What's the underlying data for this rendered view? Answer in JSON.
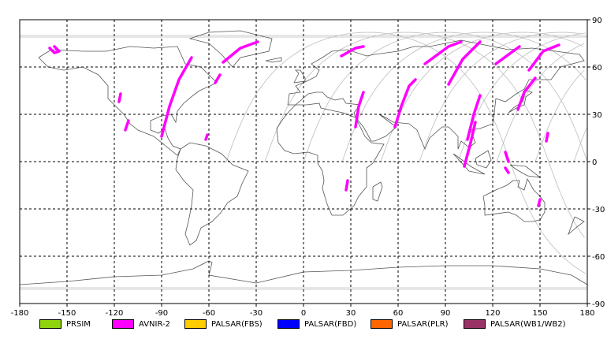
{
  "map": {
    "x_ticks": [
      "-180",
      "-150",
      "-120",
      "-90",
      "-60",
      "-30",
      "0",
      "30",
      "60",
      "90",
      "120",
      "150",
      "180"
    ],
    "y_ticks": [
      "90",
      "60",
      "30",
      "0",
      "-30",
      "-60",
      "-90"
    ],
    "x_range": [
      -180,
      180
    ],
    "y_range": [
      -90,
      90
    ],
    "grid": "dashed",
    "frame_color": "#000000",
    "orbit_color": "#bdbdbd",
    "coast_color": "#555555",
    "scenes": [
      {
        "sensor": "AVNIR-2",
        "path": [
          [
            -158,
            73
          ],
          [
            -155,
            70
          ],
          [
            -158,
            69
          ],
          [
            -161,
            72
          ]
        ]
      },
      {
        "sensor": "AVNIR-2",
        "path": [
          [
            -117,
            38
          ],
          [
            -116,
            43
          ]
        ]
      },
      {
        "sensor": "AVNIR-2",
        "path": [
          [
            -113,
            20
          ],
          [
            -111,
            26
          ]
        ]
      },
      {
        "sensor": "AVNIR-2",
        "path": [
          [
            -90,
            16
          ],
          [
            -85,
            35
          ],
          [
            -79,
            52
          ],
          [
            -71,
            66
          ]
        ]
      },
      {
        "sensor": "AVNIR-2",
        "path": [
          [
            -62,
            14
          ],
          [
            -61,
            17
          ]
        ]
      },
      {
        "sensor": "AVNIR-2",
        "path": [
          [
            -56,
            50
          ],
          [
            -53,
            55
          ]
        ]
      },
      {
        "sensor": "AVNIR-2",
        "path": [
          [
            -51,
            63
          ],
          [
            -40,
            72
          ],
          [
            -29,
            76
          ]
        ]
      },
      {
        "sensor": "AVNIR-2",
        "path": [
          [
            24,
            67
          ],
          [
            33,
            72
          ],
          [
            38,
            73
          ]
        ]
      },
      {
        "sensor": "AVNIR-2",
        "path": [
          [
            33,
            22
          ],
          [
            35,
            35
          ],
          [
            38,
            44
          ]
        ]
      },
      {
        "sensor": "AVNIR-2",
        "path": [
          [
            28,
            -12
          ],
          [
            27,
            -18
          ]
        ]
      },
      {
        "sensor": "AVNIR-2",
        "path": [
          [
            58,
            22
          ],
          [
            62,
            35
          ],
          [
            67,
            48
          ],
          [
            71,
            52
          ]
        ]
      },
      {
        "sensor": "AVNIR-2",
        "path": [
          [
            77,
            62
          ],
          [
            92,
            73
          ],
          [
            100,
            76
          ]
        ]
      },
      {
        "sensor": "AVNIR-2",
        "path": [
          [
            92,
            49
          ],
          [
            101,
            65
          ],
          [
            112,
            76
          ]
        ]
      },
      {
        "sensor": "AVNIR-2",
        "path": [
          [
            102,
            -3
          ],
          [
            106,
            12
          ],
          [
            109,
            25
          ]
        ]
      },
      {
        "sensor": "AVNIR-2",
        "path": [
          [
            104,
            14
          ],
          [
            108,
            30
          ],
          [
            112,
            42
          ]
        ]
      },
      {
        "sensor": "AVNIR-2",
        "path": [
          [
            122,
            62
          ],
          [
            137,
            73
          ]
        ]
      },
      {
        "sensor": "AVNIR-2",
        "path": [
          [
            143,
            58
          ],
          [
            152,
            70
          ],
          [
            162,
            74
          ]
        ]
      },
      {
        "sensor": "AVNIR-2",
        "path": [
          [
            136,
            33
          ],
          [
            140,
            44
          ],
          [
            147,
            53
          ]
        ]
      },
      {
        "sensor": "AVNIR-2",
        "path": [
          [
            128,
            6
          ],
          [
            130,
            0
          ]
        ]
      },
      {
        "sensor": "AVNIR-2",
        "path": [
          [
            130,
            -7
          ],
          [
            128,
            -4
          ]
        ]
      },
      {
        "sensor": "AVNIR-2",
        "path": [
          [
            154,
            13
          ],
          [
            155,
            18
          ]
        ]
      },
      {
        "sensor": "AVNIR-2",
        "path": [
          [
            149,
            -28
          ],
          [
            150,
            -24
          ]
        ]
      }
    ]
  },
  "legend": [
    {
      "label": "PRSIM",
      "color": "#8fd40e"
    },
    {
      "label": "AVNIR-2",
      "color": "#ff00ff"
    },
    {
      "label": "PALSAR(FBS)",
      "color": "#ffcc00"
    },
    {
      "label": "PALSAR(FBD)",
      "color": "#0000ff"
    },
    {
      "label": "PALSAR(PLR)",
      "color": "#ff6600"
    },
    {
      "label": "PALSAR(WB1/WB2)",
      "color": "#993366"
    }
  ]
}
